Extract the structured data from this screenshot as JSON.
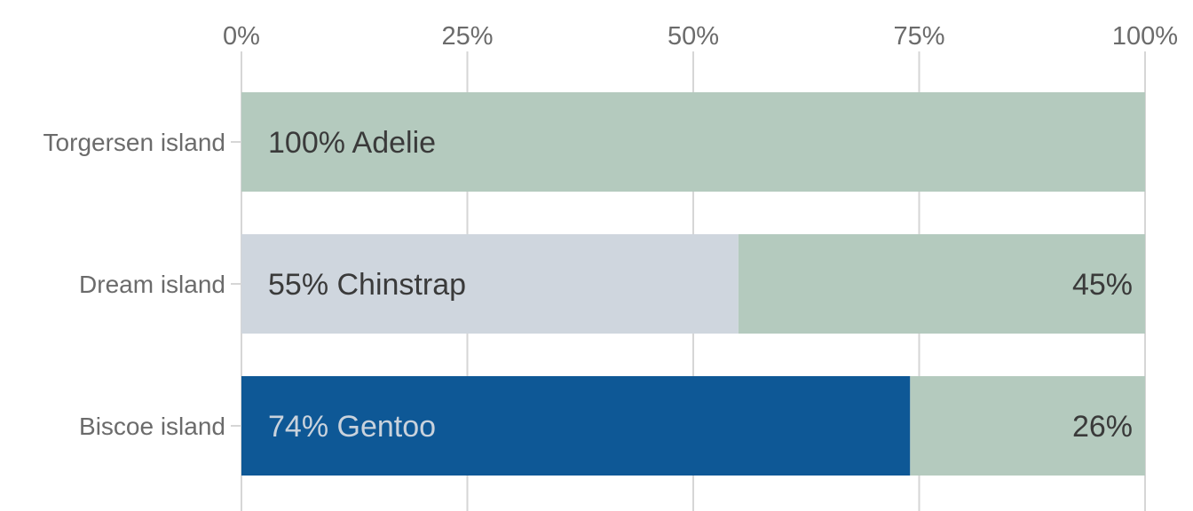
{
  "chart_data": {
    "type": "bar",
    "orientation": "horizontal",
    "stacked": true,
    "xlim": [
      0,
      100
    ],
    "x_ticks": [
      0,
      25,
      50,
      75,
      100
    ],
    "x_tick_labels": [
      "0%",
      "25%",
      "50%",
      "75%",
      "100%"
    ],
    "x_axis_position": "top",
    "grid": "vertical",
    "categories": [
      "Torgersen island",
      "Dream island",
      "Biscoe island"
    ],
    "colors": {
      "highlight": {
        "Torgersen island": "#b4cabe",
        "Dream island": "#cfd6de",
        "Biscoe island": "#0e5896"
      },
      "rest": "#b4cabe",
      "grid": "#d6d6d6",
      "text_dark": "#3a3a3a",
      "text_light": "#c9d2dc"
    },
    "bars": [
      {
        "category": "Torgersen island",
        "segments": [
          {
            "value": 100,
            "label": "100% Adelie",
            "label_align": "left"
          }
        ]
      },
      {
        "category": "Dream island",
        "segments": [
          {
            "value": 55,
            "label": "55% Chinstrap",
            "label_align": "left"
          },
          {
            "value": 45,
            "label": "45%",
            "label_align": "right"
          }
        ]
      },
      {
        "category": "Biscoe island",
        "segments": [
          {
            "value": 74,
            "label": "74% Gentoo",
            "label_align": "left"
          },
          {
            "value": 26,
            "label": "26%",
            "label_align": "right"
          }
        ]
      }
    ]
  }
}
